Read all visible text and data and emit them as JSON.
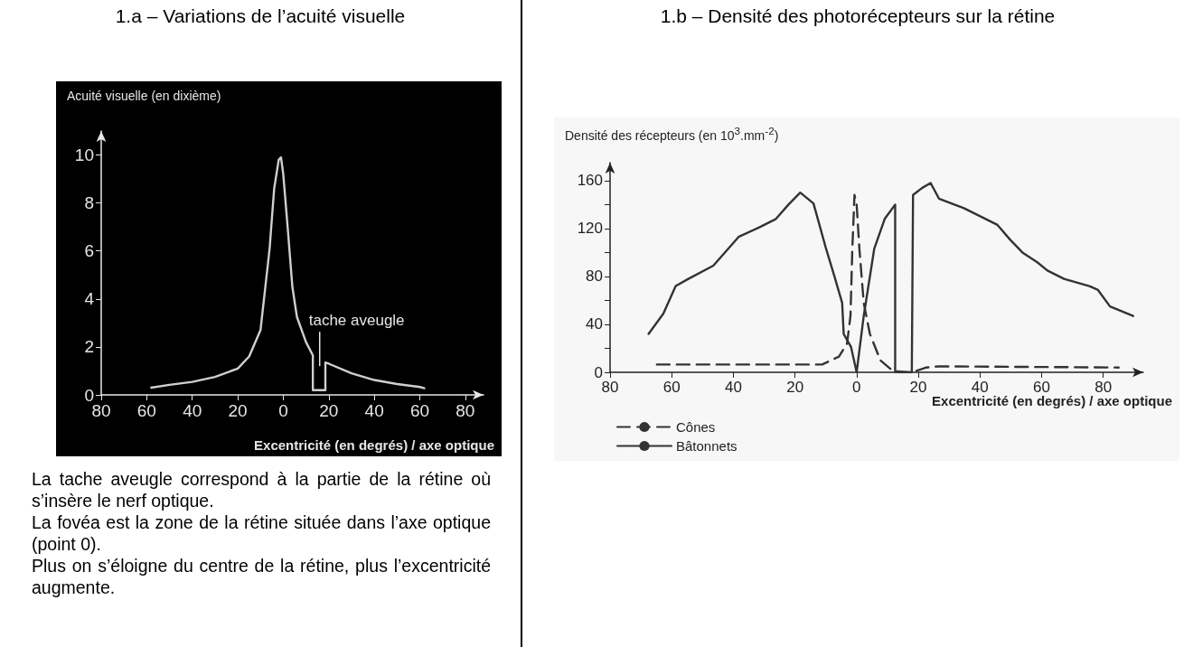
{
  "chart_data": [
    {
      "type": "line",
      "title": "1.a – Variations de l’acuité visuelle",
      "ylabel": "Acuité visuelle (en dixième)",
      "xlabel": "Excentricité (en degrés) / axe optique",
      "xlim": [
        -80,
        88
      ],
      "xticks": [
        {
          "value": -80,
          "label": "80"
        },
        {
          "value": -60,
          "label": "60"
        },
        {
          "value": -40,
          "label": "40"
        },
        {
          "value": -20,
          "label": "20"
        },
        0,
        20,
        40,
        60,
        80
      ],
      "ylim": [
        0,
        11
      ],
      "yticks": [
        0,
        2,
        4,
        6,
        8,
        10
      ],
      "grid": false,
      "legend": false,
      "marker": "none",
      "series": [
        {
          "color": "#cfcfcf",
          "line_style": "solid",
          "x": [
            -58,
            -50,
            -40,
            -30,
            -20,
            -15,
            -10,
            -6,
            -4,
            -2,
            -1,
            0,
            2,
            4,
            6,
            10,
            13,
            13,
            18.5,
            18.5,
            20,
            30,
            40,
            50,
            60,
            62
          ],
          "values": [
            0.3,
            0.42,
            0.54,
            0.75,
            1.1,
            1.6,
            2.7,
            6.1,
            8.6,
            9.8,
            9.9,
            9.2,
            6.9,
            4.5,
            3.25,
            2.2,
            1.65,
            0.2,
            0.2,
            1.35,
            1.3,
            0.9,
            0.62,
            0.45,
            0.33,
            0.28
          ]
        }
      ],
      "annotations": [
        {
          "text": "tache aveugle",
          "x": 16,
          "y": 1.2
        },
        "La tache aveugle correspond à la partie de la rétine où s’insère le nerf optique.",
        "La fovéa est la zone de la rétine située dans l’axe optique (point 0).",
        "Plus on s’éloigne du centre de la rétine, plus l’excentricité augmente."
      ]
    },
    {
      "type": "line",
      "title": "1.b – Densité des photorécepteurs sur la rétine",
      "ylabel": "Densité des récepteurs (en 10$^{3}$.mm$^{-2}$)",
      "xlabel": "Excentricité (en degrés) / axe optique",
      "xlim": [
        -80,
        93
      ],
      "xticks": [
        {
          "value": -80,
          "label": "80"
        },
        {
          "value": -60,
          "label": "60"
        },
        {
          "value": -40,
          "label": "40"
        },
        {
          "value": -20,
          "label": "20"
        },
        0,
        20,
        40,
        60,
        80
      ],
      "ylim": [
        0,
        175
      ],
      "yticks": [
        0,
        {
          "value": 20,
          "label": null
        },
        40,
        {
          "value": 60,
          "label": null
        },
        80,
        {
          "value": 100,
          "label": null
        },
        120,
        {
          "value": 140,
          "label": null
        },
        160
      ],
      "grid": false,
      "legend": "bottom left",
      "marker": "none",
      "series": [
        {
          "name": "Cônes",
          "color": "#333333",
          "line_style": "dashed",
          "x": [
            -64.8,
            -11.2,
            -5.8,
            -3.1,
            -2,
            -1.4,
            -0.7,
            0,
            0.9,
            2.3,
            4.3,
            7.7,
            11.8,
            17.9,
            22.6,
            26.7,
            85
          ],
          "values": [
            6.5,
            6.5,
            13,
            24,
            47,
            103,
            148,
            140,
            103,
            58,
            32,
            10,
            1,
            0,
            4,
            5,
            4
          ]
        },
        {
          "name": "Bâtonnets",
          "color": "#333333",
          "line_style": "solid",
          "x": [
            -67.5,
            -62.7,
            -58.7,
            -54.6,
            -46.5,
            -38.3,
            -31.6,
            -26.2,
            -22.1,
            -18.3,
            -14,
            -9.9,
            -7.2,
            -4.7,
            -4.2,
            -1.8,
            0,
            2.3,
            5.7,
            9.1,
            12.5,
            12.5,
            17.9,
            18.3,
            21.3,
            24,
            26.7,
            34.8,
            45.7,
            49.7,
            53.8,
            58.5,
            61.9,
            67.3,
            75.5,
            78.2,
            82.2,
            89.7
          ],
          "values": [
            32,
            49,
            72,
            78,
            89,
            113,
            121,
            128,
            140,
            150,
            141,
            103,
            80,
            58,
            32,
            21,
            0,
            47,
            103,
            128,
            140,
            0,
            0,
            148,
            154,
            158,
            145,
            137,
            123,
            111,
            100,
            92,
            85,
            78,
            72,
            69,
            55,
            47
          ]
        }
      ]
    }
  ]
}
